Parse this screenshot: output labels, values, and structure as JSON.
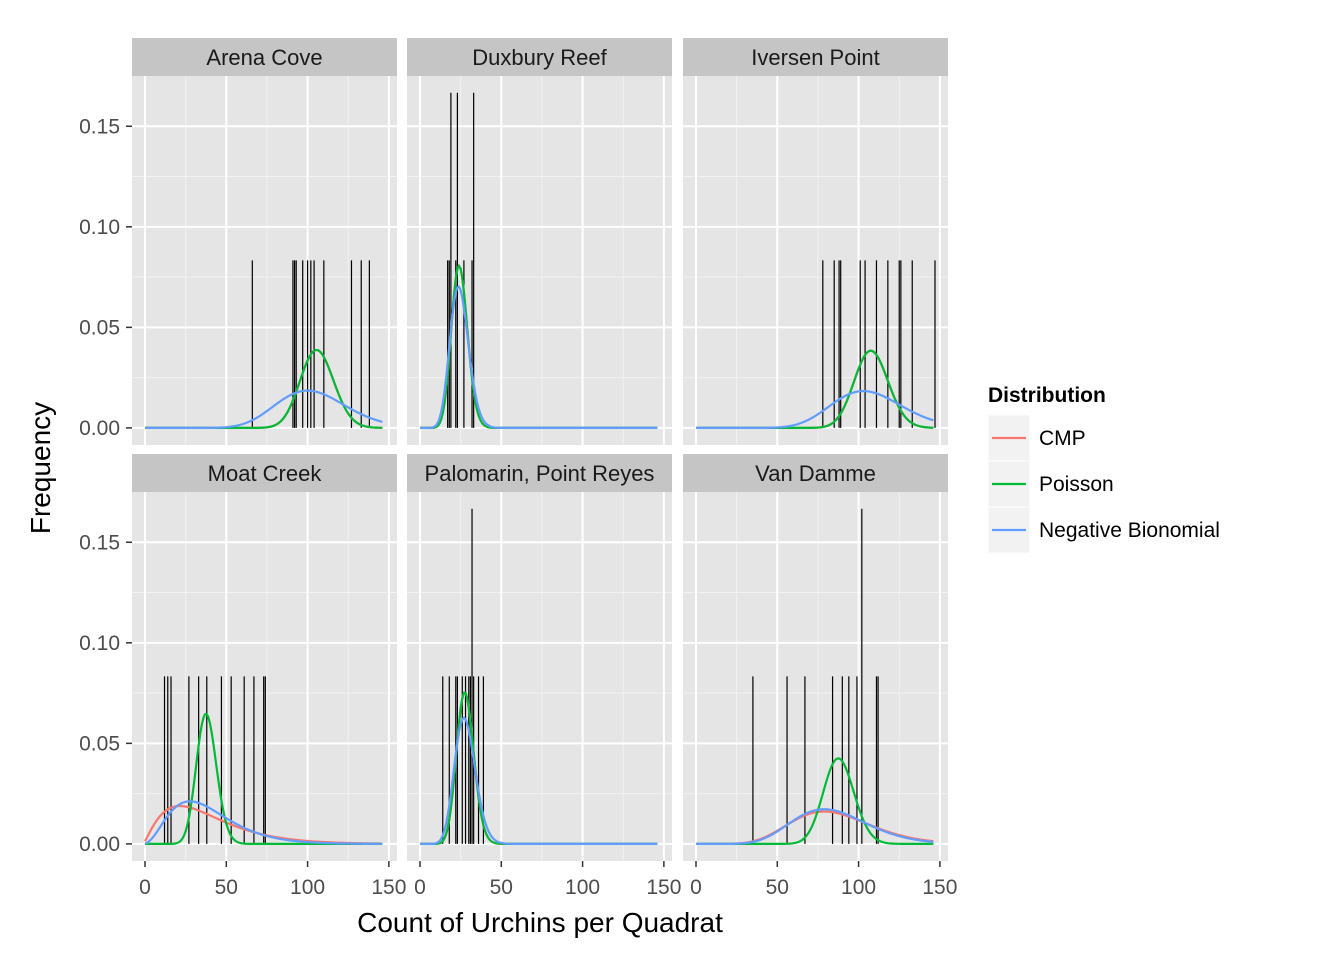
{
  "chart_data": {
    "type": "histogram-with-density-lines",
    "xlabel": "Count of Urchins per Quadrat",
    "ylabel": "Frequency",
    "xlim": [
      -8,
      155
    ],
    "ylim": [
      -0.0085,
      0.175
    ],
    "x_ticks": [
      0,
      50,
      100,
      150
    ],
    "x_tick_labels": [
      "0",
      "50",
      "100",
      "150"
    ],
    "y_ticks": [
      0.0,
      0.05,
      0.1,
      0.15
    ],
    "y_tick_labels": [
      "0.00",
      "0.05",
      "0.10",
      "0.15"
    ],
    "grid": true,
    "legend": {
      "title": "Distribution",
      "position": "right",
      "entries": [
        {
          "label": "CMP",
          "color": "#f8766d"
        },
        {
          "label": "Poisson",
          "color": "#00ba38"
        },
        {
          "label": "Negative Bionomial",
          "color": "#619cff"
        }
      ]
    },
    "facets": [
      {
        "name": "Arena Cove",
        "observations": [
          {
            "x": 66,
            "y": 0.0833
          },
          {
            "x": 91,
            "y": 0.0833
          },
          {
            "x": 92,
            "y": 0.0833
          },
          {
            "x": 93,
            "y": 0.0833
          },
          {
            "x": 97,
            "y": 0.0833
          },
          {
            "x": 100,
            "y": 0.0833
          },
          {
            "x": 102,
            "y": 0.0833
          },
          {
            "x": 104,
            "y": 0.0833
          },
          {
            "x": 110,
            "y": 0.0833
          },
          {
            "x": 127,
            "y": 0.0833
          },
          {
            "x": 133,
            "y": 0.0833
          },
          {
            "x": 138,
            "y": 0.0833
          }
        ],
        "series": [
          {
            "name": "CMP",
            "dist": "poisson",
            "mean": 106
          },
          {
            "name": "Poisson",
            "dist": "poisson",
            "mean": 106
          },
          {
            "name": "Negative Bionomial",
            "dist": "nbinom",
            "mean": 104,
            "size": 29
          }
        ]
      },
      {
        "name": "Duxbury Reef",
        "observations": [
          {
            "x": 17,
            "y": 0.0833
          },
          {
            "x": 18,
            "y": 0.0833
          },
          {
            "x": 19,
            "y": 0.1667
          },
          {
            "x": 22,
            "y": 0.0833
          },
          {
            "x": 23,
            "y": 0.1667
          },
          {
            "x": 27,
            "y": 0.0833
          },
          {
            "x": 32,
            "y": 0.0833
          },
          {
            "x": 33,
            "y": 0.1667
          }
        ],
        "series": [
          {
            "name": "CMP",
            "dist": "poisson",
            "mean": 24.5
          },
          {
            "name": "Poisson",
            "dist": "poisson",
            "mean": 24.5
          },
          {
            "name": "Negative Bionomial",
            "dist": "nbinom",
            "mean": 24.5,
            "size": 74
          }
        ]
      },
      {
        "name": "Iversen Point",
        "observations": [
          {
            "x": 78,
            "y": 0.0833
          },
          {
            "x": 85,
            "y": 0.0833
          },
          {
            "x": 88,
            "y": 0.0833
          },
          {
            "x": 89,
            "y": 0.0833
          },
          {
            "x": 101,
            "y": 0.0833
          },
          {
            "x": 104,
            "y": 0.0833
          },
          {
            "x": 111,
            "y": 0.0833
          },
          {
            "x": 118,
            "y": 0.0833
          },
          {
            "x": 125,
            "y": 0.0833
          },
          {
            "x": 126,
            "y": 0.0833
          },
          {
            "x": 133,
            "y": 0.0833
          },
          {
            "x": 147,
            "y": 0.0833
          }
        ],
        "series": [
          {
            "name": "CMP",
            "dist": "poisson",
            "mean": 108
          },
          {
            "name": "Poisson",
            "dist": "poisson",
            "mean": 108
          },
          {
            "name": "Negative Bionomial",
            "dist": "nbinom",
            "mean": 107,
            "size": 30
          }
        ]
      },
      {
        "name": "Moat Creek",
        "observations": [
          {
            "x": 12,
            "y": 0.0833
          },
          {
            "x": 14,
            "y": 0.0833
          },
          {
            "x": 16,
            "y": 0.0833
          },
          {
            "x": 27,
            "y": 0.0833
          },
          {
            "x": 33,
            "y": 0.0833
          },
          {
            "x": 38,
            "y": 0.0833
          },
          {
            "x": 47,
            "y": 0.0833
          },
          {
            "x": 53,
            "y": 0.0833
          },
          {
            "x": 61,
            "y": 0.0833
          },
          {
            "x": 67,
            "y": 0.0833
          },
          {
            "x": 73,
            "y": 0.0833
          },
          {
            "x": 74,
            "y": 0.0833
          }
        ],
        "series": [
          {
            "name": "CMP",
            "dist": "nbinom",
            "mean": 39,
            "size": 2.3
          },
          {
            "name": "Poisson",
            "dist": "poisson",
            "mean": 38
          },
          {
            "name": "Negative Bionomial",
            "dist": "nbinom",
            "mean": 39,
            "size": 3.6
          }
        ]
      },
      {
        "name": "Palomarin, Point Reyes",
        "observations": [
          {
            "x": 14,
            "y": 0.0833
          },
          {
            "x": 18,
            "y": 0.0833
          },
          {
            "x": 22,
            "y": 0.0833
          },
          {
            "x": 23,
            "y": 0.0833
          },
          {
            "x": 26,
            "y": 0.0833
          },
          {
            "x": 28,
            "y": 0.0833
          },
          {
            "x": 30,
            "y": 0.0833
          },
          {
            "x": 31,
            "y": 0.0833
          },
          {
            "x": 32,
            "y": 0.1667
          },
          {
            "x": 33,
            "y": 0.0833
          },
          {
            "x": 36,
            "y": 0.0833
          },
          {
            "x": 39,
            "y": 0.0833
          }
        ],
        "series": [
          {
            "name": "CMP",
            "dist": "poisson",
            "mean": 28
          },
          {
            "name": "Poisson",
            "dist": "poisson",
            "mean": 28
          },
          {
            "name": "Negative Bionomial",
            "dist": "nbinom",
            "mean": 28,
            "size": 60
          }
        ]
      },
      {
        "name": "Van Damme",
        "observations": [
          {
            "x": 35,
            "y": 0.0833
          },
          {
            "x": 56,
            "y": 0.0833
          },
          {
            "x": 67,
            "y": 0.0833
          },
          {
            "x": 84,
            "y": 0.0833
          },
          {
            "x": 90,
            "y": 0.0833
          },
          {
            "x": 94,
            "y": 0.0833
          },
          {
            "x": 99,
            "y": 0.0833
          },
          {
            "x": 102,
            "y": 0.1667
          },
          {
            "x": 111,
            "y": 0.0833
          },
          {
            "x": 112,
            "y": 0.0833
          }
        ],
        "series": [
          {
            "name": "CMP",
            "dist": "nbinom",
            "mean": 86,
            "size": 13
          },
          {
            "name": "Poisson",
            "dist": "poisson",
            "mean": 88
          },
          {
            "name": "Negative Bionomial",
            "dist": "nbinom",
            "mean": 85,
            "size": 15
          }
        ]
      }
    ]
  }
}
